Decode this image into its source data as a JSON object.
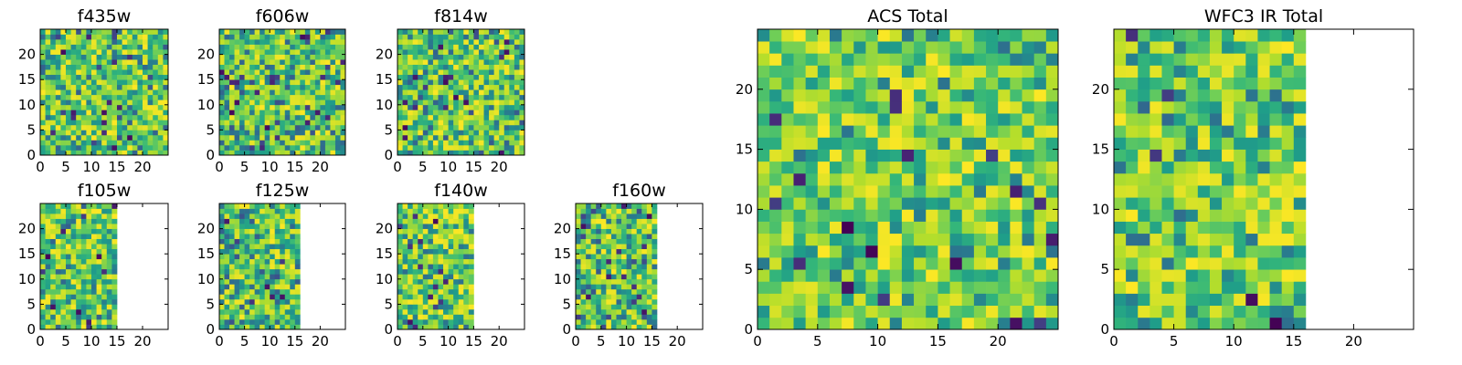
{
  "chart_data": [
    {
      "type": "heatmap",
      "title": "f435w",
      "xticks": [
        "0",
        "5",
        "10",
        "15",
        "20"
      ],
      "yticks": [
        "0",
        "5",
        "10",
        "15",
        "20"
      ],
      "xlim": [
        0,
        25
      ],
      "ylim": [
        0,
        25
      ],
      "grid": false,
      "colormap": "viridis",
      "coverage_cols": 25,
      "cmin": 0.2,
      "seed": 11
    },
    {
      "type": "heatmap",
      "title": "f606w",
      "xticks": [
        "0",
        "5",
        "10",
        "15",
        "20"
      ],
      "yticks": [
        "0",
        "5",
        "10",
        "15",
        "20"
      ],
      "xlim": [
        0,
        25
      ],
      "ylim": [
        0,
        25
      ],
      "grid": false,
      "colormap": "viridis",
      "coverage_cols": 25,
      "cmin": 0.2,
      "seed": 23
    },
    {
      "type": "heatmap",
      "title": "f814w",
      "xticks": [
        "0",
        "5",
        "10",
        "15",
        "20"
      ],
      "yticks": [
        "0",
        "5",
        "10",
        "15",
        "20"
      ],
      "xlim": [
        0,
        25
      ],
      "ylim": [
        0,
        25
      ],
      "grid": false,
      "colormap": "viridis",
      "coverage_cols": 25,
      "cmin": 0.2,
      "seed": 37
    },
    {
      "type": "heatmap",
      "title": "f105w",
      "xticks": [
        "0",
        "5",
        "10",
        "15",
        "20"
      ],
      "yticks": [
        "0",
        "5",
        "10",
        "15",
        "20"
      ],
      "xlim": [
        0,
        25
      ],
      "ylim": [
        0,
        25
      ],
      "grid": false,
      "colormap": "viridis",
      "coverage_cols": 15,
      "cmin": 0.25,
      "seed": 41
    },
    {
      "type": "heatmap",
      "title": "f125w",
      "xticks": [
        "0",
        "5",
        "10",
        "15",
        "20"
      ],
      "yticks": [
        "0",
        "5",
        "10",
        "15",
        "20"
      ],
      "xlim": [
        0,
        25
      ],
      "ylim": [
        0,
        25
      ],
      "grid": false,
      "colormap": "viridis",
      "coverage_cols": 16,
      "cmin": 0.2,
      "seed": 53
    },
    {
      "type": "heatmap",
      "title": "f140w",
      "xticks": [
        "0",
        "5",
        "10",
        "15",
        "20"
      ],
      "yticks": [
        "0",
        "5",
        "10",
        "15",
        "20"
      ],
      "xlim": [
        0,
        25
      ],
      "ylim": [
        0,
        25
      ],
      "grid": false,
      "colormap": "viridis",
      "coverage_cols": 15,
      "cmin": 0.3,
      "seed": 67
    },
    {
      "type": "heatmap",
      "title": "f160w",
      "xticks": [
        "0",
        "5",
        "10",
        "15",
        "20"
      ],
      "yticks": [
        "0",
        "5",
        "10",
        "15",
        "20"
      ],
      "xlim": [
        0,
        25
      ],
      "ylim": [
        0,
        25
      ],
      "grid": false,
      "colormap": "viridis",
      "coverage_cols": 16,
      "cmin": 0.15,
      "seed": 71
    },
    {
      "type": "heatmap",
      "title": "ACS Total",
      "xticks": [
        "0",
        "5",
        "10",
        "15",
        "20"
      ],
      "yticks": [
        "0",
        "5",
        "10",
        "15",
        "20"
      ],
      "xlim": [
        0,
        25
      ],
      "ylim": [
        0,
        25
      ],
      "grid": false,
      "colormap": "viridis",
      "coverage_cols": 25,
      "cmin": 0.35,
      "seed": 83
    },
    {
      "type": "heatmap",
      "title": "WFC3 IR Total",
      "xticks": [
        "0",
        "5",
        "10",
        "15",
        "20"
      ],
      "yticks": [
        "0",
        "5",
        "10",
        "15",
        "20"
      ],
      "xlim": [
        0,
        25
      ],
      "ylim": [
        0,
        25
      ],
      "grid": false,
      "colormap": "viridis",
      "coverage_cols": 16,
      "cmin": 0.3,
      "seed": 97
    }
  ]
}
